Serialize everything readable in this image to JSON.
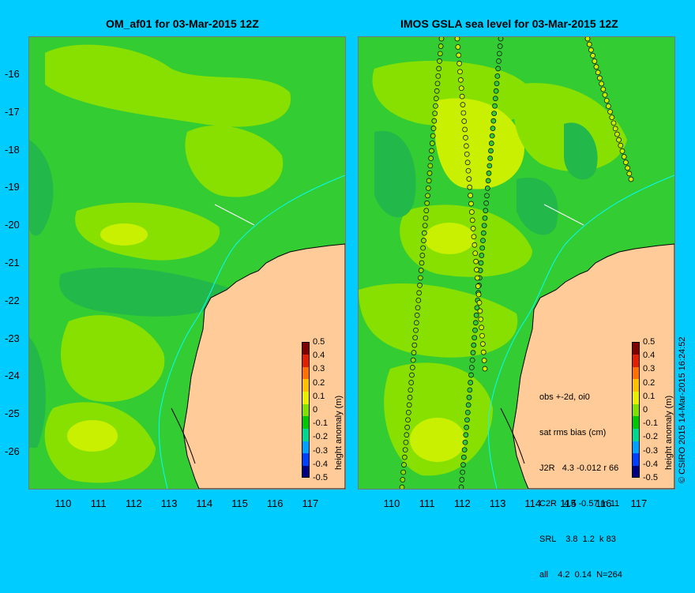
{
  "left_panel": {
    "title": "OM_af01 for 03-Mar-2015 12Z"
  },
  "right_panel": {
    "title": "IMOS GSLA sea level  for 03-Mar-2015 12Z",
    "stats": {
      "header1": "obs +-2d, oi0",
      "header2": "sat rms bias (cm)",
      "rows": [
        "J2R   4.3 -0.012 r 66",
        "C2R   4.4 -0.57 m 11",
        "SRL    3.8  1.2  k 83",
        "all    4.2  0.14  N=264"
      ]
    }
  },
  "axes": {
    "y_ticks": [
      "-16",
      "-17",
      "-18",
      "-19",
      "-20",
      "-21",
      "-22",
      "-23",
      "-24",
      "-25",
      "-26"
    ],
    "x_ticks": [
      "110",
      "111",
      "112",
      "113",
      "114",
      "115",
      "116",
      "117"
    ]
  },
  "colorbar": {
    "label": "height anomaly (m)",
    "ticks": [
      "0.5",
      "0.4",
      "0.3",
      "0.2",
      "0.1",
      "0",
      "-0.1",
      "-0.2",
      "-0.3",
      "-0.4",
      "-0.5"
    ],
    "colors": [
      "#000080",
      "#0040ff",
      "#00a0ff",
      "#00d890",
      "#00c800",
      "#80e000",
      "#e8f000",
      "#ffc000",
      "#ff7000",
      "#e02000",
      "#800000"
    ]
  },
  "map_colors": {
    "base": "#33cc33",
    "dark": "#22b84a",
    "light": "#88e000",
    "yellow": "#c8f000",
    "land": "#ffcc99",
    "coast": "#000000",
    "contour": "#00ffff"
  },
  "copyright": "© CSIRO 2015   14-Mar-2015 16:24:52"
}
